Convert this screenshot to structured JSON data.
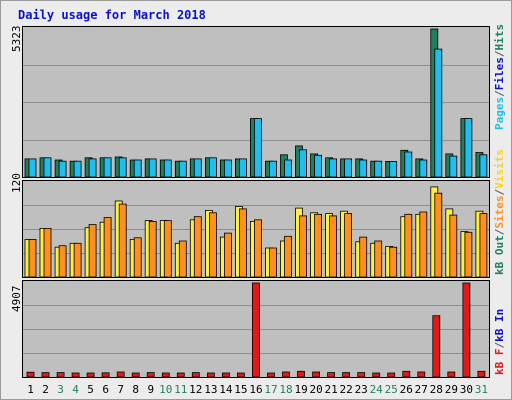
{
  "chart_data": {
    "type": "bar",
    "title": "Daily usage for March 2018",
    "categories": [
      "1",
      "2",
      "3",
      "4",
      "5",
      "6",
      "7",
      "8",
      "9",
      "10",
      "11",
      "12",
      "13",
      "14",
      "15",
      "16",
      "17",
      "18",
      "19",
      "20",
      "21",
      "22",
      "23",
      "24",
      "25",
      "26",
      "27",
      "28",
      "29",
      "30",
      "31"
    ],
    "weekend_days": [
      "3",
      "4",
      "10",
      "11",
      "17",
      "18",
      "24",
      "25",
      "31"
    ],
    "panels": [
      {
        "name": "pages-files-hits",
        "ymax_label": "5323",
        "ymax": 5323,
        "side_labels": [
          "Pages",
          "Files",
          "Hits"
        ],
        "series": [
          {
            "name": "Hits",
            "color": "#1F7F5F",
            "values": [
              650,
              690,
              610,
              570,
              690,
              690,
              720,
              610,
              650,
              610,
              570,
              650,
              690,
              610,
              650,
              2100,
              570,
              800,
              1120,
              830,
              690,
              650,
              650,
              570,
              560,
              960,
              650,
              5323,
              830,
              2100,
              880
            ]
          },
          {
            "name": "Files",
            "color": "#21BDEF",
            "values": [
              650,
              690,
              570,
              570,
              650,
              690,
              690,
              610,
              650,
              610,
              570,
              650,
              690,
              610,
              650,
              2100,
              570,
              610,
              980,
              780,
              650,
              650,
              610,
              570,
              560,
              900,
              610,
              4600,
              750,
              2100,
              800
            ]
          }
        ]
      },
      {
        "name": "visits-sites",
        "ymax_label": "120",
        "ymax": 120,
        "side_labels": [
          "Visits",
          "Sites",
          "kB Out"
        ],
        "series": [
          {
            "name": "Visits",
            "color": "#FFEF3F",
            "values": [
              48,
              62,
              38,
              43,
              63,
              70,
              97,
              48,
              72,
              72,
              43,
              73,
              85,
              51,
              90,
              71,
              37,
              46,
              88,
              82,
              81,
              84,
              45,
              43,
              39,
              77,
              80,
              115,
              87,
              58,
              84
            ]
          },
          {
            "name": "Sites",
            "color": "#FF8F1F",
            "values": [
              48,
              62,
              40,
              43,
              67,
              76,
              93,
              50,
              71,
              72,
              46,
              77,
              82,
              56,
              87,
              73,
              37,
              52,
              78,
              80,
              78,
              81,
              51,
              46,
              38,
              80,
              83,
              107,
              79,
              57,
              81
            ]
          }
        ]
      },
      {
        "name": "kbytes",
        "ymax_label": "4907",
        "ymax": 4907,
        "side_labels": [
          "kB In",
          "kB F"
        ],
        "series": [
          {
            "name": "kB F",
            "color": "#E11919",
            "values": [
              250,
              230,
              230,
              210,
              210,
              220,
              260,
              210,
              230,
              210,
              210,
              230,
              210,
              210,
              210,
              4907,
              210,
              260,
              300,
              260,
              230,
              230,
              230,
              210,
              210,
              300,
              260,
              3200,
              260,
              4907,
              300
            ]
          }
        ]
      }
    ]
  }
}
